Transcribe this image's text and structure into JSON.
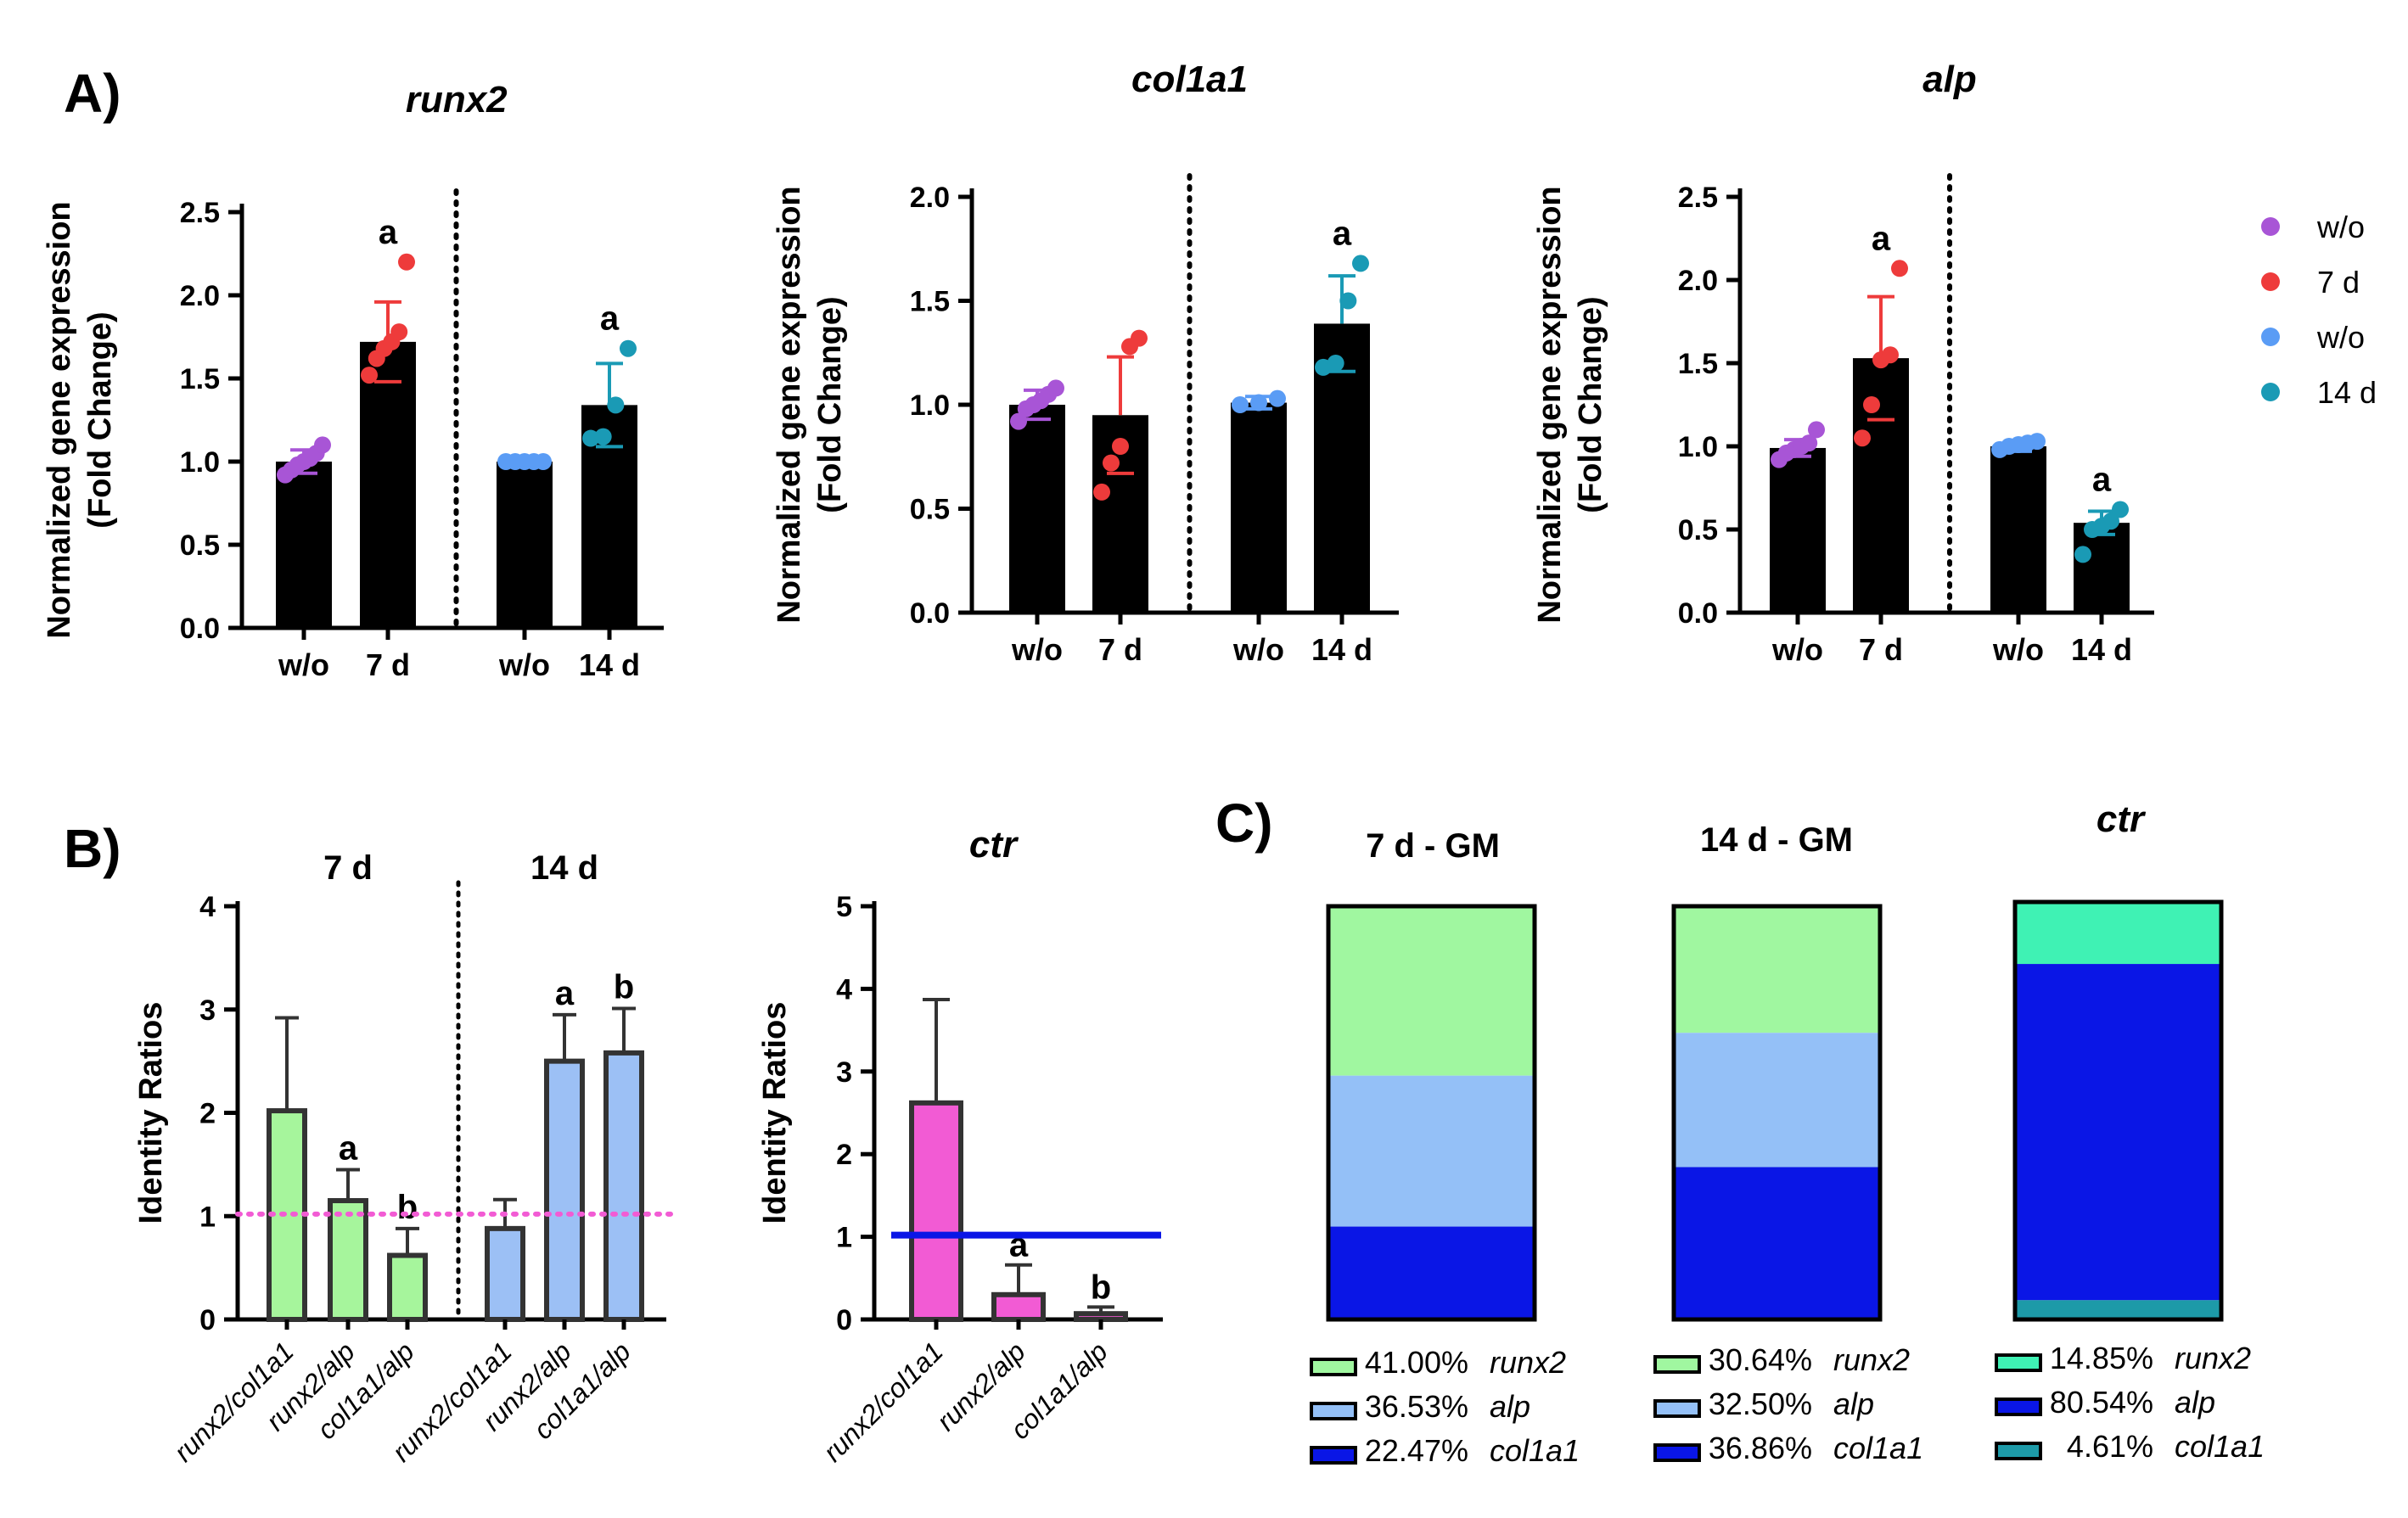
{
  "panel_labels": {
    "a": "A)",
    "b": "B)",
    "c": "C)"
  },
  "legend_a": [
    {
      "label": "w/o",
      "color": "#a855d6"
    },
    {
      "label": "7 d",
      "color": "#ee3b3b"
    },
    {
      "label": "w/o",
      "color": "#5a9cf5"
    },
    {
      "label": "14 d",
      "color": "#1a9ab5"
    }
  ],
  "chart_data": [
    {
      "id": "runx2",
      "type": "bar",
      "title": "runx2",
      "ylabel": [
        "Normalized gene expression",
        "(Fold Change)"
      ],
      "ylim": [
        0,
        2.5
      ],
      "yticks": [
        "0.0",
        "0.5",
        "1.0",
        "1.5",
        "2.0",
        "2.5"
      ],
      "categories": [
        "w/o",
        "7 d",
        "w/o",
        "14 d"
      ],
      "values": [
        1.0,
        1.72,
        1.0,
        1.34
      ],
      "errors": [
        0.07,
        0.24,
        0.02,
        0.25
      ],
      "point_colors": [
        "#a855d6",
        "#ee3b3b",
        "#5a9cf5",
        "#1a9ab5"
      ],
      "points": [
        [
          0.92,
          0.95,
          0.98,
          1.0,
          1.02,
          1.05,
          1.1
        ],
        [
          1.52,
          1.62,
          1.68,
          1.72,
          1.78,
          2.2
        ],
        [
          1.0,
          1.0,
          1.0,
          1.0,
          1.0
        ],
        [
          1.14,
          1.15,
          1.34,
          1.68
        ]
      ],
      "significance": [
        "",
        "a",
        "",
        "a"
      ]
    },
    {
      "id": "col1a1",
      "type": "bar",
      "title": "col1a1",
      "ylabel": [
        "Normalized gene expression",
        "(Fold Change)"
      ],
      "ylim": [
        0,
        2.0
      ],
      "yticks": [
        "0.0",
        "0.5",
        "1.0",
        "1.5",
        "2.0"
      ],
      "categories": [
        "w/o",
        "7 d",
        "w/o",
        "14 d"
      ],
      "values": [
        1.0,
        0.95,
        1.01,
        1.39
      ],
      "errors": [
        0.07,
        0.28,
        0.03,
        0.23
      ],
      "point_colors": [
        "#a855d6",
        "#ee3b3b",
        "#5a9cf5",
        "#1a9ab5"
      ],
      "points": [
        [
          0.92,
          0.98,
          1.0,
          1.02,
          1.05,
          1.08
        ],
        [
          0.58,
          0.72,
          0.8,
          1.28,
          1.32
        ],
        [
          1.0,
          1.01,
          1.03
        ],
        [
          1.18,
          1.2,
          1.5,
          1.68
        ]
      ],
      "significance": [
        "",
        "",
        "",
        "a"
      ]
    },
    {
      "id": "alp",
      "type": "bar",
      "title": "alp",
      "ylabel": [
        "Normalized gene expression",
        "(Fold Change)"
      ],
      "ylim": [
        0,
        2.5
      ],
      "yticks": [
        "0.0",
        "0.5",
        "1.0",
        "1.5",
        "2.0",
        "2.5"
      ],
      "categories": [
        "w/o",
        "7 d",
        "w/o",
        "14 d"
      ],
      "values": [
        0.99,
        1.53,
        1.0,
        0.54
      ],
      "errors": [
        0.05,
        0.37,
        0.03,
        0.07
      ],
      "point_colors": [
        "#a855d6",
        "#ee3b3b",
        "#5a9cf5",
        "#1a9ab5"
      ],
      "points": [
        [
          0.92,
          0.96,
          0.98,
          1.0,
          1.02,
          1.1
        ],
        [
          1.05,
          1.25,
          1.52,
          1.55,
          2.07
        ],
        [
          0.98,
          1.0,
          1.01,
          1.02,
          1.03
        ],
        [
          0.35,
          0.5,
          0.52,
          0.55,
          0.62
        ]
      ],
      "significance": [
        "",
        "a",
        "",
        "a"
      ]
    },
    {
      "id": "ratios-gm",
      "type": "bar",
      "group_titles": [
        "7 d",
        "14 d"
      ],
      "ylabel": "Identity Ratios",
      "ylim": [
        0,
        4
      ],
      "yticks": [
        "0",
        "1",
        "2",
        "3",
        "4"
      ],
      "categories": [
        "runx2/col1a1",
        "runx2/alp",
        "col1a1/alp",
        "runx2/col1a1",
        "runx2/alp",
        "col1a1/alp"
      ],
      "values": [
        2.02,
        1.15,
        0.62,
        0.88,
        2.5,
        2.58
      ],
      "errors": [
        0.9,
        0.3,
        0.26,
        0.28,
        0.45,
        0.43
      ],
      "colors": [
        "#a6f59c",
        "#a6f59c",
        "#a6f59c",
        "#9cc0f5",
        "#9cc0f5",
        "#9cc0f5"
      ],
      "reference_line": 1.02,
      "significance": [
        "",
        "a",
        "b",
        "",
        "a",
        "b"
      ]
    },
    {
      "id": "ratios-ctr",
      "type": "bar",
      "title": "ctr",
      "ylabel": "Identity Ratios",
      "ylim": [
        0,
        5
      ],
      "yticks": [
        "0",
        "1",
        "2",
        "3",
        "4",
        "5"
      ],
      "categories": [
        "runx2/col1a1",
        "runx2/alp",
        "col1a1/alp"
      ],
      "values": [
        2.62,
        0.3,
        0.07
      ],
      "errors": [
        1.25,
        0.36,
        0.08
      ],
      "colors": [
        "#f25bd4",
        "#f25bd4",
        "#f25bd4"
      ],
      "reference_line": 1.02,
      "significance": [
        "",
        "a",
        "b"
      ]
    },
    {
      "id": "stacked",
      "type": "bar",
      "stacked": true,
      "categories": [
        "7 d - GM",
        "14 d - GM",
        "ctr"
      ],
      "series": [
        {
          "name": "runx2",
          "values": [
            41.0,
            30.64,
            14.85
          ],
          "labels": [
            "41.00%",
            "30.64%",
            "14.85%"
          ],
          "colors": [
            "#a0f7a0",
            "#a0f7a0",
            "#3ff2b4"
          ]
        },
        {
          "name": "alp",
          "values": [
            36.53,
            32.5,
            80.54
          ],
          "labels": [
            "36.53%",
            "32.50%",
            "80.54%"
          ],
          "colors": [
            "#94c0f7",
            "#94c0f7",
            "#0a16e6"
          ]
        },
        {
          "name": "col1a1",
          "values": [
            22.47,
            36.86,
            4.61
          ],
          "labels": [
            "22.47%",
            "36.86%",
            "4.61%"
          ],
          "colors": [
            "#0a16e6",
            "#0a16e6",
            "#1d9aa8"
          ]
        }
      ]
    }
  ]
}
